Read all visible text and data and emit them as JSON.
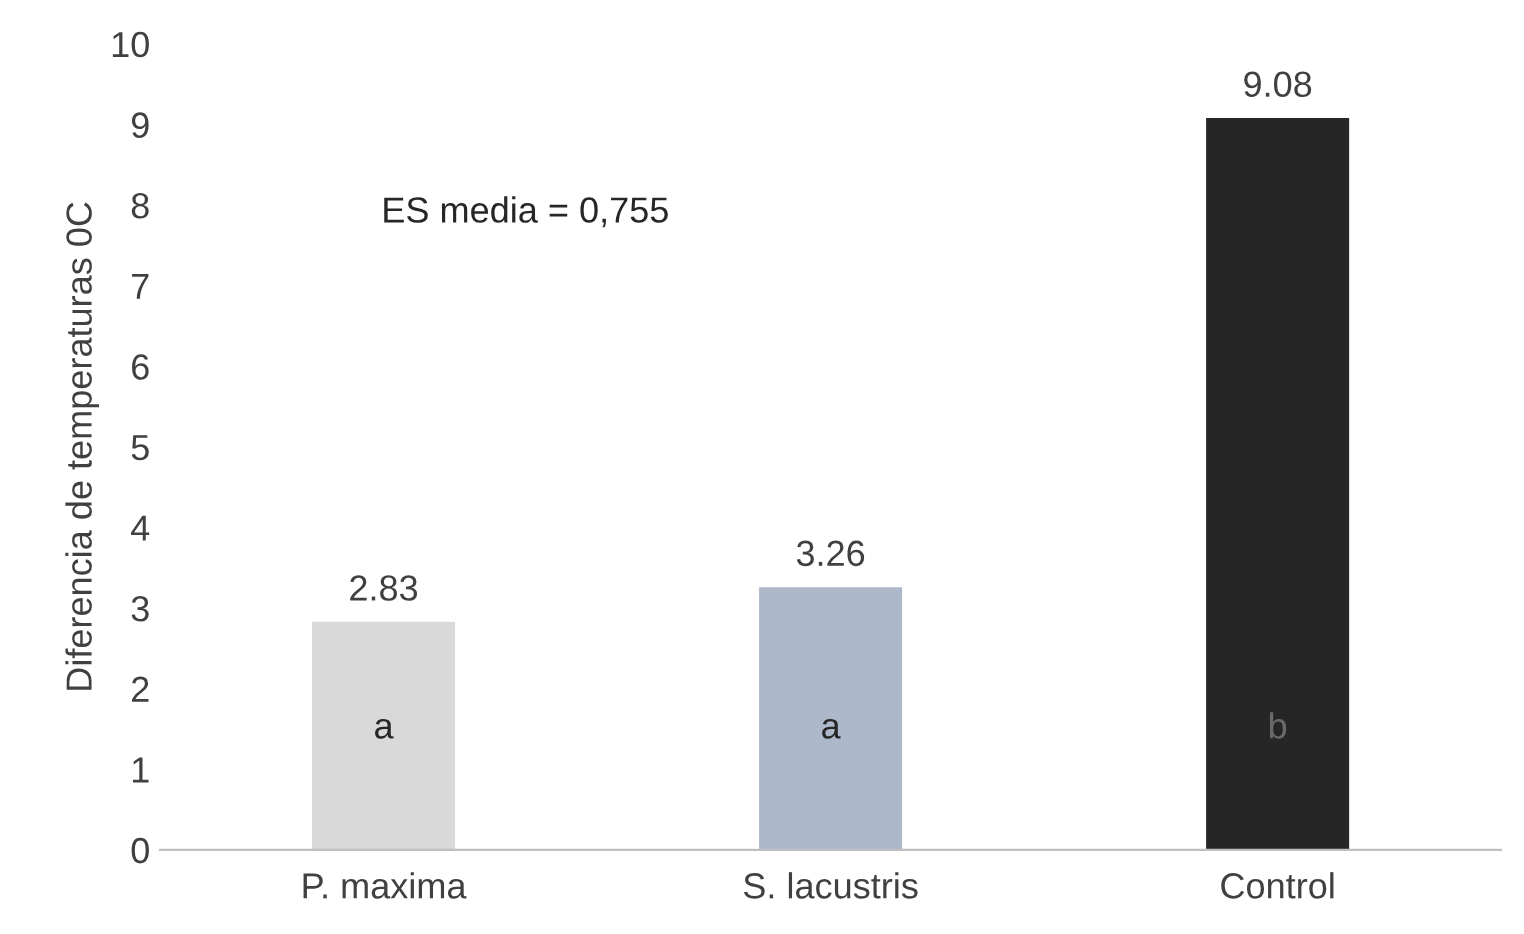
{
  "chart_data": {
    "type": "bar",
    "ylabel": "Diferencia de temperaturas 0C",
    "categories": [
      "P. maxima",
      "S. lacustris",
      "Control"
    ],
    "values": [
      2.83,
      3.26,
      9.08
    ],
    "colors": [
      "#d9d9d9",
      "#adb9ca",
      "#262626"
    ],
    "ylim": [
      0,
      10
    ],
    "yticks": [
      0,
      1,
      2,
      3,
      4,
      5,
      6,
      7,
      8,
      9,
      10
    ],
    "grid": false,
    "data_labels": true,
    "annotations": [
      "ES media = 0,755",
      "a",
      "a",
      "b"
    ]
  }
}
